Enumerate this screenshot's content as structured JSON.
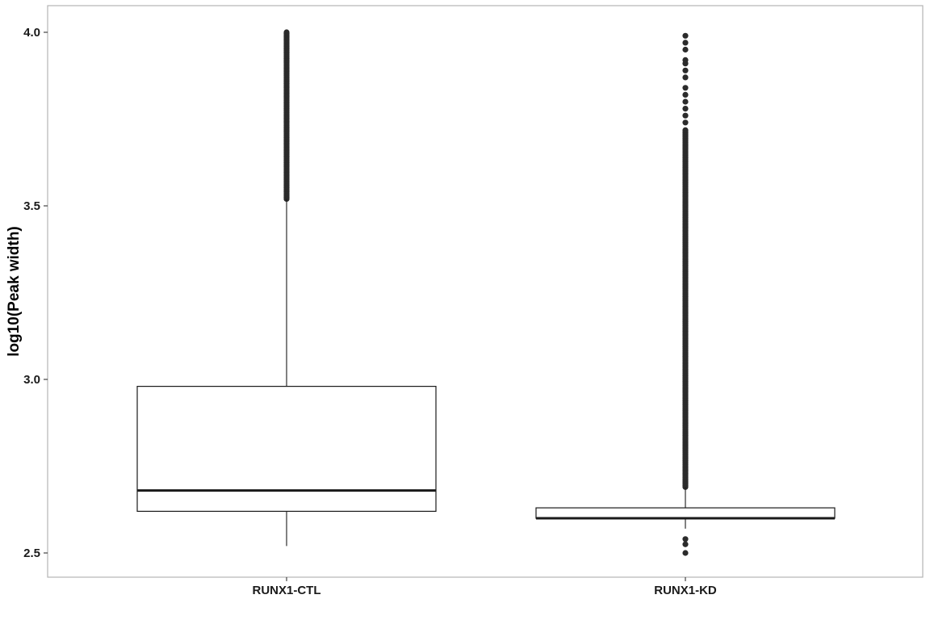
{
  "chart_data": {
    "type": "box",
    "title": "",
    "xlabel": "",
    "ylabel": "log10(Peak width)",
    "ylim": [
      2.43,
      4.08
    ],
    "yticks": [
      2.5,
      3.0,
      3.5,
      4.0
    ],
    "ytick_labels": [
      "2.5",
      "3.0",
      "3.5",
      "4.0"
    ],
    "grid": false,
    "legend": "none",
    "categories": [
      "RUNX1-CTL",
      "RUNX1-KD"
    ],
    "boxes": [
      {
        "category": "RUNX1-CTL",
        "lower_whisker": 2.52,
        "q1": 2.62,
        "median": 2.68,
        "q3": 2.98,
        "upper_whisker": 3.52,
        "outliers_low": [],
        "outliers_high_range": [
          3.52,
          4.0
        ]
      },
      {
        "category": "RUNX1-KD",
        "lower_whisker": 2.57,
        "q1": 2.6,
        "median": 2.6,
        "q3": 2.63,
        "upper_whisker": 2.69,
        "outliers_low": [
          2.5,
          2.525,
          2.54
        ],
        "outliers_high_range": [
          2.69,
          3.72
        ],
        "outliers_high_sparse": [
          3.74,
          3.76,
          3.78,
          3.8,
          3.82,
          3.84,
          3.87,
          3.89,
          3.91,
          3.92,
          3.95,
          3.97,
          3.99
        ]
      }
    ],
    "colors": {
      "box_line": "#1a1a1a",
      "outlier": "#2b2b2b",
      "panel_border": "#b3b3b3",
      "axis_tick": "#333333"
    }
  }
}
